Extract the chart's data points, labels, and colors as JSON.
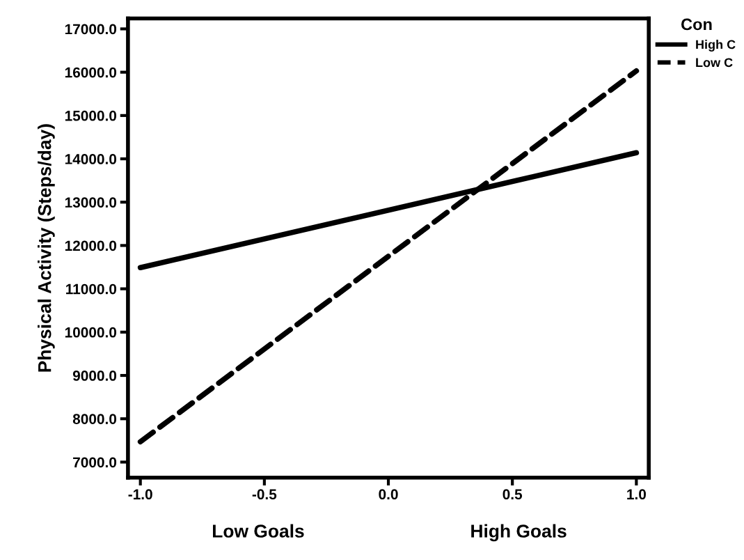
{
  "chart_data": {
    "type": "line",
    "ylabel": "Physical Activity (Steps/day)",
    "legend_title": "Con",
    "legend": "top right",
    "x": [
      -1.0,
      1.0
    ],
    "series": [
      {
        "name": "High C",
        "color": "#000000",
        "values": [
          11490,
          14140
        ],
        "line_style": "solid"
      },
      {
        "name": "Low C",
        "color": "#000000",
        "values": [
          7470,
          16030
        ],
        "line_style": "dashed"
      }
    ],
    "xlim": [
      -1.05,
      1.05
    ],
    "xticks": [
      {
        "value": -1.0,
        "label": "-1.0"
      },
      {
        "value": -0.5,
        "label": "-0.5"
      },
      {
        "value": 0.0,
        "label": "0.0"
      },
      {
        "value": 0.5,
        "label": "0.5"
      },
      {
        "value": 1.0,
        "label": "1.0"
      }
    ],
    "ylim": [
      6640,
      17240
    ],
    "yticks": [
      {
        "value": 7000,
        "label": "7000.0"
      },
      {
        "value": 8000,
        "label": "8000.0"
      },
      {
        "value": 9000,
        "label": "9000.0"
      },
      {
        "value": 10000,
        "label": "10000.0"
      },
      {
        "value": 11000,
        "label": "11000.0"
      },
      {
        "value": 12000,
        "label": "12000.0"
      },
      {
        "value": 13000,
        "label": "13000.0"
      },
      {
        "value": 14000,
        "label": "14000.0"
      },
      {
        "value": 15000,
        "label": "15000.0"
      },
      {
        "value": 16000,
        "label": "16000.0"
      },
      {
        "value": 17000,
        "label": "17000.0"
      }
    ],
    "annotations": [
      "Low Goals",
      "High Goals"
    ],
    "grid": false,
    "marker": "none"
  }
}
